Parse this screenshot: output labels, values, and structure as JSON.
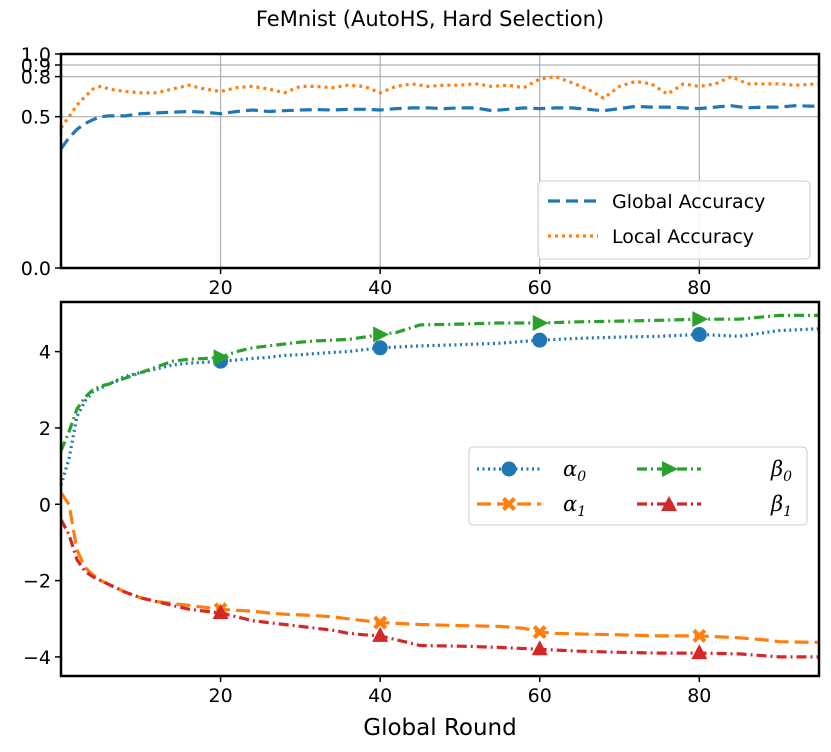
{
  "chart_data": [
    {
      "type": "line",
      "title": "FeMnist (AutoHS, Hard Selection)",
      "xlabel": "",
      "ylabel": "",
      "xlim": [
        0,
        95
      ],
      "ylim": [
        0.0,
        1.0
      ],
      "y_scale": "sqrt",
      "grid": true,
      "legend_position": "lower-right",
      "xticks": [
        20,
        40,
        60,
        80
      ],
      "xtick_labels": [
        "20",
        "40",
        "60",
        "80"
      ],
      "yticks": [
        0.0,
        0.5,
        0.8,
        0.9,
        1.0
      ],
      "ytick_labels": [
        "0.0",
        "0.5",
        "0.8",
        "0.9",
        "1.0"
      ],
      "series": [
        {
          "name": "Global Accuracy",
          "color": "#1f77b4",
          "style": "dashed",
          "x": [
            0,
            1,
            2,
            3,
            4,
            5,
            6,
            8,
            10,
            12,
            14,
            16,
            18,
            20,
            22,
            24,
            26,
            28,
            30,
            32,
            34,
            36,
            38,
            40,
            42,
            44,
            46,
            48,
            50,
            52,
            54,
            56,
            58,
            60,
            62,
            64,
            66,
            68,
            70,
            72,
            74,
            76,
            78,
            80,
            82,
            84,
            86,
            88,
            90,
            92,
            95
          ],
          "y": [
            0.31,
            0.37,
            0.42,
            0.455,
            0.48,
            0.5,
            0.505,
            0.505,
            0.52,
            0.525,
            0.53,
            0.535,
            0.53,
            0.52,
            0.535,
            0.545,
            0.535,
            0.54,
            0.545,
            0.548,
            0.545,
            0.55,
            0.55,
            0.545,
            0.555,
            0.56,
            0.56,
            0.555,
            0.56,
            0.56,
            0.54,
            0.55,
            0.56,
            0.555,
            0.56,
            0.56,
            0.55,
            0.54,
            0.555,
            0.57,
            0.565,
            0.565,
            0.56,
            0.555,
            0.565,
            0.575,
            0.56,
            0.565,
            0.565,
            0.575,
            0.57
          ]
        },
        {
          "name": "Local Accuracy",
          "color": "#ff7f0e",
          "style": "dotted",
          "x": [
            0,
            1,
            2,
            3,
            4,
            5,
            6,
            8,
            10,
            12,
            14,
            16,
            18,
            20,
            22,
            24,
            26,
            28,
            30,
            32,
            34,
            36,
            38,
            40,
            42,
            44,
            46,
            48,
            50,
            52,
            54,
            56,
            58,
            60,
            62,
            64,
            66,
            68,
            70,
            72,
            74,
            76,
            78,
            80,
            82,
            84,
            86,
            88,
            90,
            92,
            95
          ],
          "y": [
            0.43,
            0.5,
            0.58,
            0.64,
            0.7,
            0.72,
            0.7,
            0.68,
            0.67,
            0.67,
            0.7,
            0.73,
            0.7,
            0.68,
            0.71,
            0.72,
            0.7,
            0.67,
            0.72,
            0.72,
            0.71,
            0.73,
            0.72,
            0.67,
            0.72,
            0.74,
            0.72,
            0.73,
            0.73,
            0.74,
            0.72,
            0.73,
            0.71,
            0.78,
            0.8,
            0.75,
            0.7,
            0.63,
            0.72,
            0.76,
            0.74,
            0.66,
            0.74,
            0.72,
            0.74,
            0.8,
            0.74,
            0.74,
            0.74,
            0.73,
            0.74
          ]
        }
      ]
    },
    {
      "type": "line",
      "title": "",
      "xlabel": "Global Round",
      "ylabel": "",
      "xlim": [
        0,
        95
      ],
      "ylim": [
        -4.5,
        5.3
      ],
      "grid": false,
      "legend_position": "center-right",
      "legend_columns": 2,
      "xticks": [
        20,
        40,
        60,
        80
      ],
      "xtick_labels": [
        "20",
        "40",
        "60",
        "80"
      ],
      "yticks": [
        -4,
        -2,
        0,
        2,
        4
      ],
      "ytick_labels": [
        "−4",
        "−2",
        "0",
        "2",
        "4"
      ],
      "series": [
        {
          "name": "α",
          "subscript": "0",
          "color": "#1f77b4",
          "style": "dotted",
          "marker": "circle",
          "marker_x": [
            20,
            40,
            60,
            80
          ],
          "x": [
            0,
            1,
            2,
            3,
            4,
            5,
            6,
            8,
            10,
            12,
            14,
            16,
            18,
            20,
            22,
            24,
            26,
            28,
            30,
            32,
            34,
            36,
            38,
            40,
            45,
            50,
            55,
            60,
            65,
            70,
            75,
            80,
            85,
            90,
            95
          ],
          "y": [
            0.5,
            1.2,
            2.3,
            2.7,
            2.95,
            3.05,
            3.15,
            3.35,
            3.45,
            3.55,
            3.65,
            3.7,
            3.72,
            3.75,
            3.78,
            3.82,
            3.85,
            3.9,
            3.92,
            3.95,
            3.98,
            4.0,
            4.05,
            4.1,
            4.15,
            4.18,
            4.22,
            4.3,
            4.35,
            4.38,
            4.4,
            4.45,
            4.4,
            4.55,
            4.6
          ]
        },
        {
          "name": "α",
          "subscript": "1",
          "color": "#ff7f0e",
          "style": "dashed",
          "marker": "x",
          "marker_x": [
            20,
            40,
            60,
            80
          ],
          "x": [
            0,
            1,
            2,
            3,
            4,
            5,
            6,
            8,
            10,
            12,
            14,
            16,
            18,
            20,
            22,
            24,
            26,
            28,
            30,
            32,
            34,
            36,
            38,
            40,
            42,
            45,
            50,
            55,
            58,
            60,
            62,
            65,
            70,
            75,
            80,
            85,
            88,
            90,
            95
          ],
          "y": [
            0.3,
            0.0,
            -1.2,
            -1.65,
            -1.85,
            -2.0,
            -2.1,
            -2.3,
            -2.45,
            -2.55,
            -2.6,
            -2.65,
            -2.7,
            -2.75,
            -2.78,
            -2.8,
            -2.85,
            -2.88,
            -2.9,
            -2.92,
            -2.95,
            -3.0,
            -3.05,
            -3.1,
            -3.12,
            -3.15,
            -3.18,
            -3.2,
            -3.25,
            -3.35,
            -3.38,
            -3.4,
            -3.42,
            -3.45,
            -3.45,
            -3.5,
            -3.55,
            -3.6,
            -3.62
          ]
        },
        {
          "name": "β",
          "subscript": "0",
          "color": "#2ca02c",
          "style": "dashdot",
          "marker": "triangle-right",
          "marker_x": [
            20,
            40,
            60,
            80
          ],
          "x": [
            0,
            1,
            2,
            3,
            4,
            5,
            6,
            8,
            10,
            12,
            14,
            16,
            18,
            20,
            22,
            24,
            26,
            28,
            30,
            32,
            34,
            36,
            38,
            40,
            42,
            45,
            50,
            55,
            60,
            65,
            70,
            75,
            80,
            85,
            90,
            95
          ],
          "y": [
            1.4,
            1.9,
            2.5,
            2.8,
            3.0,
            3.1,
            3.15,
            3.3,
            3.45,
            3.6,
            3.75,
            3.8,
            3.82,
            3.85,
            4.0,
            4.1,
            4.15,
            4.2,
            4.25,
            4.28,
            4.3,
            4.32,
            4.38,
            4.45,
            4.5,
            4.7,
            4.72,
            4.75,
            4.75,
            4.78,
            4.8,
            4.82,
            4.85,
            4.85,
            4.95,
            4.95
          ]
        },
        {
          "name": "β",
          "subscript": "1",
          "color": "#d62728",
          "style": "dashdot",
          "marker": "triangle-up",
          "marker_x": [
            20,
            40,
            60,
            80
          ],
          "x": [
            0,
            1,
            2,
            3,
            4,
            5,
            6,
            8,
            10,
            12,
            14,
            16,
            18,
            20,
            22,
            24,
            26,
            28,
            30,
            32,
            34,
            36,
            38,
            40,
            42,
            45,
            50,
            55,
            60,
            65,
            70,
            75,
            80,
            85,
            90,
            95
          ],
          "y": [
            -0.4,
            -0.8,
            -1.45,
            -1.75,
            -1.9,
            -2.0,
            -2.1,
            -2.3,
            -2.45,
            -2.55,
            -2.65,
            -2.75,
            -2.8,
            -2.85,
            -2.95,
            -3.05,
            -3.1,
            -3.15,
            -3.2,
            -3.25,
            -3.3,
            -3.38,
            -3.42,
            -3.45,
            -3.55,
            -3.7,
            -3.72,
            -3.75,
            -3.8,
            -3.85,
            -3.88,
            -3.9,
            -3.9,
            -3.92,
            -4.0,
            -4.0
          ]
        }
      ]
    }
  ]
}
